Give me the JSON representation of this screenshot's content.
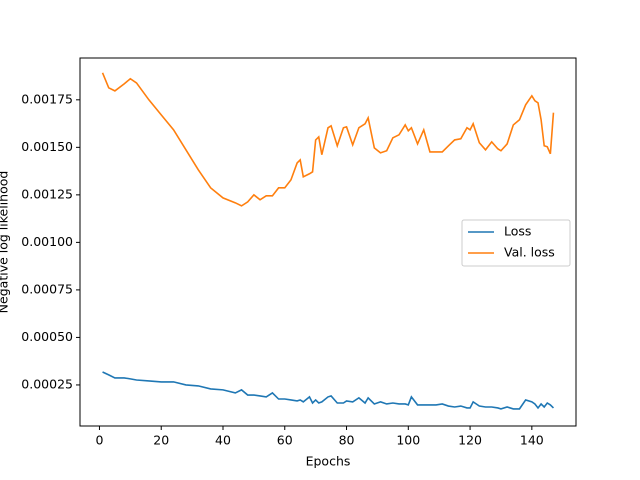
{
  "chart_data": {
    "type": "line",
    "xlabel": "Epochs",
    "ylabel": "Negative log likelihood",
    "x": [
      1,
      3,
      5,
      8,
      10,
      12,
      16,
      20,
      24,
      28,
      32,
      36,
      40,
      44,
      46,
      48,
      50,
      52,
      54,
      56,
      58,
      60,
      62,
      64,
      65,
      66,
      68,
      69,
      70,
      71,
      72,
      74,
      75,
      77,
      79,
      80,
      82,
      84,
      86,
      87,
      89,
      91,
      93,
      95,
      97,
      99,
      100,
      101,
      103,
      105,
      107,
      109,
      111,
      113,
      115,
      117,
      119,
      120,
      121,
      123,
      125,
      127,
      129,
      130,
      132,
      134,
      136,
      138,
      140,
      141,
      142,
      143,
      144,
      145,
      146,
      147
    ],
    "series": [
      {
        "name": "Loss",
        "color": "#1f77b4",
        "values": [
          0.000318,
          0.000303,
          0.000287,
          0.000287,
          0.000282,
          0.000276,
          0.000271,
          0.000266,
          0.000266,
          0.00025,
          0.000245,
          0.000229,
          0.000224,
          0.000208,
          0.000224,
          0.000197,
          0.000197,
          0.000192,
          0.000187,
          0.000208,
          0.000176,
          0.000176,
          0.000171,
          0.000166,
          0.000171,
          0.000161,
          0.000187,
          0.000155,
          0.000171,
          0.000155,
          0.000161,
          0.000187,
          0.000192,
          0.000155,
          0.000155,
          0.000166,
          0.000161,
          0.000182,
          0.000155,
          0.000182,
          0.00015,
          0.000161,
          0.00015,
          0.000155,
          0.00015,
          0.00015,
          0.000145,
          0.000187,
          0.000145,
          0.000145,
          0.000145,
          0.000145,
          0.00015,
          0.000139,
          0.000134,
          0.000139,
          0.000129,
          0.000129,
          0.000161,
          0.000139,
          0.000134,
          0.000134,
          0.000129,
          0.000124,
          0.000134,
          0.000124,
          0.000124,
          0.000171,
          0.000161,
          0.00015,
          0.000129,
          0.00015,
          0.000134,
          0.000155,
          0.000145,
          0.000129
        ]
      },
      {
        "name": "Val. loss",
        "color": "#ff7f0e",
        "values": [
          0.001892,
          0.001813,
          0.001797,
          0.001834,
          0.001861,
          0.001839,
          0.00175,
          0.001671,
          0.001592,
          0.001487,
          0.001382,
          0.001287,
          0.001234,
          0.001208,
          0.001192,
          0.001213,
          0.00125,
          0.001224,
          0.001245,
          0.001245,
          0.001287,
          0.001287,
          0.001329,
          0.001418,
          0.001434,
          0.001345,
          0.001361,
          0.001371,
          0.001539,
          0.001555,
          0.001461,
          0.001603,
          0.001613,
          0.001508,
          0.001603,
          0.001608,
          0.001513,
          0.001603,
          0.001624,
          0.001655,
          0.001497,
          0.001471,
          0.001482,
          0.00155,
          0.001566,
          0.001618,
          0.001587,
          0.001603,
          0.001518,
          0.001592,
          0.001476,
          0.001476,
          0.001476,
          0.001508,
          0.001539,
          0.001545,
          0.001603,
          0.001592,
          0.001624,
          0.001524,
          0.001487,
          0.001529,
          0.001492,
          0.001482,
          0.001518,
          0.001618,
          0.001645,
          0.001724,
          0.001771,
          0.001745,
          0.001734,
          0.001645,
          0.001508,
          0.001503,
          0.001466,
          0.001682
        ]
      }
    ],
    "xlim": [
      -6.3,
      154.3
    ],
    "xticks": [
      0,
      20,
      40,
      60,
      80,
      100,
      120,
      140
    ],
    "ylim": [
      3.4e-05,
      0.00197
    ],
    "yticks": [
      0.00025,
      {
        "value": 0.0005,
        "label": "0.00050"
      },
      0.00075,
      {
        "value": 0.001,
        "label": "0.00100"
      },
      0.00125,
      {
        "value": 0.0015,
        "label": "0.00150"
      },
      0.00175
    ],
    "legend": "center right",
    "grid": false
  }
}
